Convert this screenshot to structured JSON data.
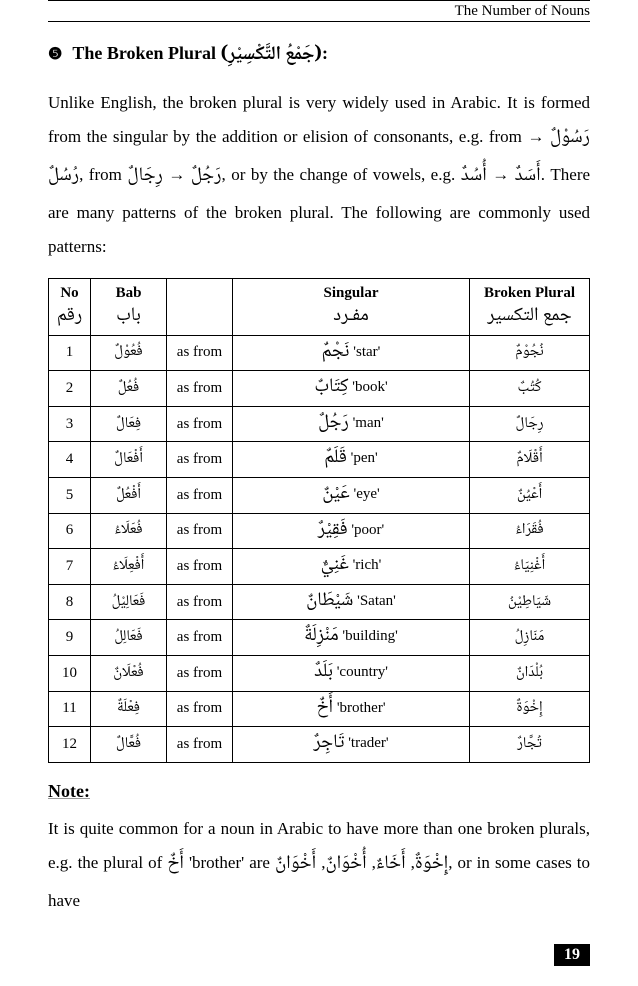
{
  "header": {
    "title": "The Number of Nouns"
  },
  "section": {
    "bullet": "❺",
    "title_en": "The Broken Plural",
    "title_ar": "(جَمْعُ التَّكْسِيْرِ)",
    "colon": ":"
  },
  "intro": {
    "t1": "Unlike English, the broken plural is very widely used in Arabic. It is formed from the singular by the addition or elision of consonants, e.g. from ",
    "ex1a": "رَسُوْلٌ",
    "arrow1": " → ",
    "ex1b": "رُسُلٌ",
    "t2": ", from ",
    "ex2a": "رَجُلٌ",
    "arrow2": " → ",
    "ex2b": "رِجَالٌ",
    "t3": ", or by the change of vowels, e.g. ",
    "ex3a": "أَسَدٌ",
    "arrow3": " → ",
    "ex3b": "أُسُدٌ",
    "t4": ". There are many patterns of the broken plural. The following are commonly used  patterns:"
  },
  "table": {
    "head": {
      "no_en": "No",
      "no_ar": "رقم",
      "bab_en": "Bab",
      "bab_ar": "باب",
      "sing_en": "Singular",
      "sing_ar": "مفـرد",
      "plural_en": "Broken Plural",
      "plural_ar": "جمع التكسير"
    },
    "asfrom": "as from",
    "rows": [
      {
        "no": "1",
        "bab": "فُعُوْلٌ",
        "sing_ar": "نَجْمٌ",
        "sing_en": "'star'",
        "plural": "نُجُوْمٌ"
      },
      {
        "no": "2",
        "bab": "فُعُلٌ",
        "sing_ar": "كِتَابٌ",
        "sing_en": "'book'",
        "plural": "كُتُبٌ"
      },
      {
        "no": "3",
        "bab": "فِعَالٌ",
        "sing_ar": "رَجُلٌ",
        "sing_en": "'man'",
        "plural": "رِجَالٌ"
      },
      {
        "no": "4",
        "bab": "أَفْعَالٌ",
        "sing_ar": "قَلَمٌ",
        "sing_en": "'pen'",
        "plural": "أَقْلَامٌ"
      },
      {
        "no": "5",
        "bab": "أَفْعُلٌ",
        "sing_ar": "عَيْنٌ",
        "sing_en": "'eye'",
        "plural": "أَعْيُنٌ"
      },
      {
        "no": "6",
        "bab": "فُعَلَاءُ",
        "sing_ar": "فَقِيْرٌ",
        "sing_en": "'poor'",
        "plural": "فُقَرَاءُ"
      },
      {
        "no": "7",
        "bab": "أَفْعِلَاءُ",
        "sing_ar": "غَنِيٌّ",
        "sing_en": "'rich'",
        "plural": "أَغْنِيَاءُ"
      },
      {
        "no": "8",
        "bab": "فَعَالِيْلُ",
        "sing_ar": "شَيْطَانٌ",
        "sing_en": "'Satan'",
        "plural": "شَيَاطِيْنُ"
      },
      {
        "no": "9",
        "bab": "فَعَالِلُ",
        "sing_ar": "مَنْزِلَةٌ",
        "sing_en": "'building'",
        "plural": "مَنَازِلُ"
      },
      {
        "no": "10",
        "bab": "فُعْلَانٌ",
        "sing_ar": "بَلَدٌ",
        "sing_en": "'country'",
        "plural": "بُلْدَانٌ"
      },
      {
        "no": "11",
        "bab": "فِعْلَةٌ",
        "sing_ar": "أَخٌ",
        "sing_en": "'brother'",
        "plural": "إِخْوَةٌ"
      },
      {
        "no": "12",
        "bab": "فُعَّالٌ",
        "sing_ar": "تَاجِرٌ",
        "sing_en": "'trader'",
        "plural": "تُجَّارٌ"
      }
    ]
  },
  "note": {
    "heading": "Note:",
    "t1": "It is quite common for a noun in Arabic to have more than one broken plurals, e.g. the plural of ",
    "w1": "أَخٌ",
    "t2": " 'brother' are ",
    "p1": "إِخْوَةٌ",
    "c1": ", ",
    "p2": "أَخَاءٌ",
    "c2": ", ",
    "p3": "أُخْوَانٌ",
    "c3": ", ",
    "p4": "أَخْوَانٌ",
    "t3": ", or in some cases to have"
  },
  "page": {
    "num": "19"
  }
}
